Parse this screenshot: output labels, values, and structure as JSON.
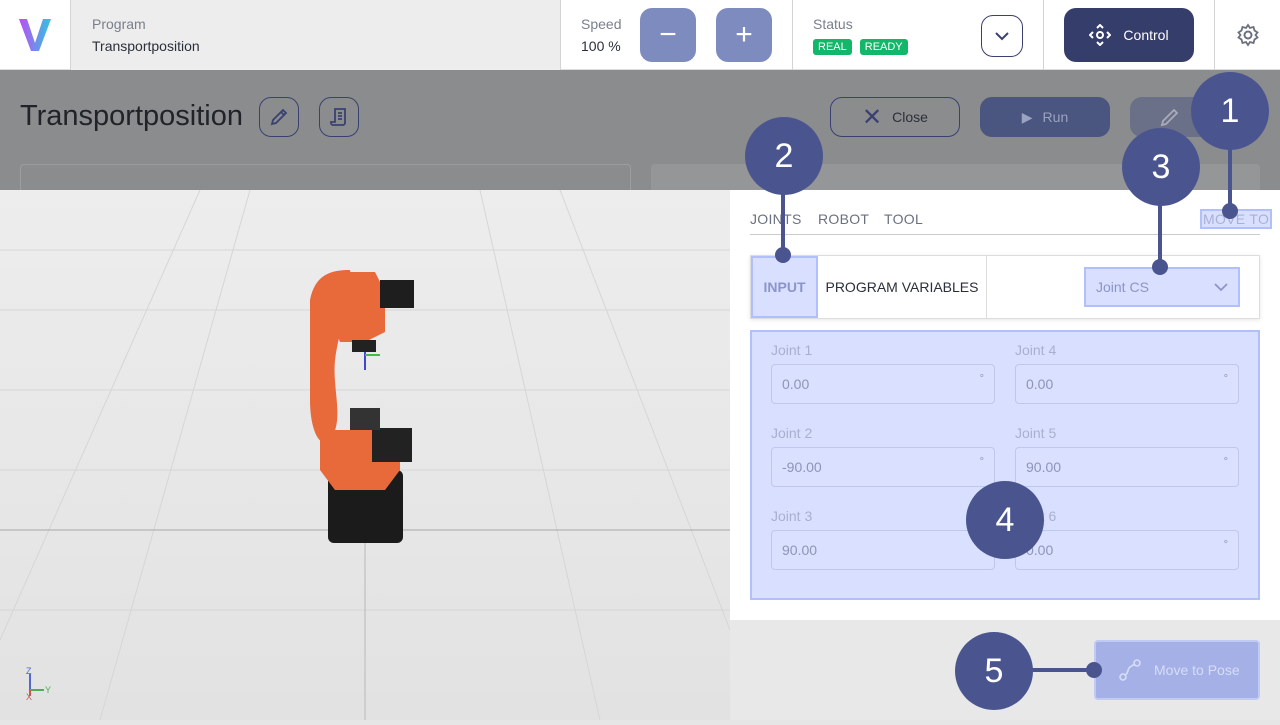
{
  "header": {
    "program_label": "Program",
    "program_name": "Transportposition",
    "speed_label": "Speed",
    "speed_value": "100 %",
    "status_label": "Status",
    "badges": [
      "REAL",
      "READY"
    ],
    "control_label": "Control"
  },
  "page": {
    "title": "Transportposition",
    "close_label": "Close",
    "run_label": "Run"
  },
  "tabs": [
    "JOINTS",
    "ROBOT",
    "TOOL",
    "MOVE TO"
  ],
  "subtabs": {
    "input": "INPUT",
    "program_variables": "PROGRAM VARIABLES",
    "coordinate_system": "Joint CS"
  },
  "joints": [
    {
      "label": "Joint 1",
      "value": "0.00"
    },
    {
      "label": "Joint 2",
      "value": "-90.00"
    },
    {
      "label": "Joint 3",
      "value": "90.00"
    },
    {
      "label": "Joint 4",
      "value": "0.00"
    },
    {
      "label": "Joint 5",
      "value": "90.00"
    },
    {
      "label": "Joint 6",
      "value": "0.00"
    }
  ],
  "unit": "°",
  "move_button": "Move to Pose",
  "annotations": [
    "1",
    "2",
    "3",
    "4",
    "5"
  ],
  "axes": {
    "z": "Z",
    "y": "Y",
    "x": "X"
  },
  "colors": {
    "accent": "#3a4170",
    "annotation": "#4a5590",
    "badge": "#12b76a",
    "robot": "#e8693a"
  }
}
